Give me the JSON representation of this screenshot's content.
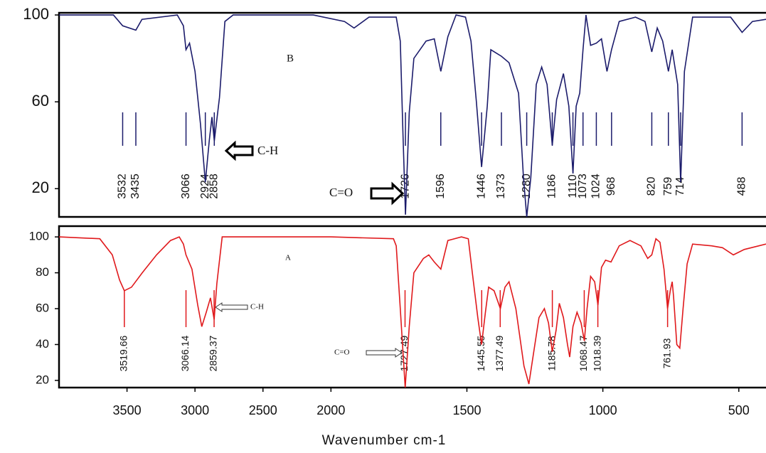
{
  "chart_data": [
    {
      "type": "line",
      "panel_label": "B",
      "xlim": [
        4000,
        400
      ],
      "xbreak": 2000,
      "ylim": [
        7,
        101
      ],
      "yticks": [
        100,
        60,
        20
      ],
      "annotations": [
        "C-H",
        "C=O"
      ],
      "peaks": [
        3532,
        3435,
        3066,
        2924,
        2858,
        1726,
        1596,
        1446,
        1373,
        1280,
        1186,
        1110,
        1073,
        1024,
        968,
        820,
        759,
        714,
        488
      ],
      "series": [
        {
          "color": "#1b1b6b",
          "x": [
            4000,
            3600,
            3532,
            3435,
            3390,
            3130,
            3085,
            3066,
            3040,
            3000,
            2960,
            2924,
            2895,
            2875,
            2858,
            2820,
            2780,
            2720,
            2130,
            1950,
            1915,
            1860,
            1760,
            1745,
            1735,
            1726,
            1712,
            1695,
            1650,
            1620,
            1596,
            1570,
            1540,
            1505,
            1485,
            1465,
            1446,
            1425,
            1412,
            1373,
            1345,
            1310,
            1292,
            1280,
            1265,
            1245,
            1225,
            1205,
            1186,
            1170,
            1145,
            1125,
            1110,
            1098,
            1085,
            1073,
            1062,
            1045,
            1024,
            1005,
            985,
            968,
            940,
            880,
            845,
            820,
            800,
            780,
            759,
            745,
            725,
            714,
            700,
            670,
            530,
            488,
            450,
            400
          ],
          "values": [
            100,
            100,
            95,
            93,
            98,
            100,
            95,
            84,
            87,
            74,
            50,
            23,
            42,
            53,
            42,
            62,
            97,
            100,
            100,
            97,
            94,
            99,
            99,
            88,
            45,
            8,
            55,
            80,
            88,
            89,
            74,
            90,
            100,
            99,
            88,
            60,
            30,
            58,
            84,
            81,
            78,
            64,
            25,
            7,
            25,
            68,
            76,
            68,
            40,
            61,
            73,
            58,
            27,
            58,
            64,
            84,
            100,
            86,
            87,
            89,
            74,
            84,
            97,
            99,
            97,
            83,
            94,
            88,
            74,
            84,
            68,
            23,
            74,
            99,
            99,
            92,
            97,
            98
          ]
        }
      ]
    },
    {
      "type": "line",
      "panel_label": "A",
      "xlim": [
        4000,
        400
      ],
      "xbreak": 2000,
      "ylim": [
        16,
        106
      ],
      "yticks": [
        100,
        80,
        60,
        40,
        20
      ],
      "xticks": [
        3500,
        3000,
        2500,
        2000,
        1500,
        1000,
        500
      ],
      "xlabel": "Wavenumber cm-1",
      "annotations": [
        "C-H",
        "C=O"
      ],
      "peaks": [
        3519.66,
        3066.14,
        2859.37,
        1727.49,
        1445.55,
        1377.49,
        1185.78,
        1068.47,
        1018.39,
        761.93
      ],
      "series": [
        {
          "color": "#e0191c",
          "x": [
            4000,
            3700,
            3608,
            3555,
            3520,
            3467,
            3388,
            3283,
            3180,
            3116,
            3085,
            3066,
            3022,
            2980,
            2950,
            2917,
            2886,
            2859,
            2839,
            2800,
            2000,
            1770,
            1760,
            1745,
            1727,
            1712,
            1695,
            1660,
            1640,
            1620,
            1596,
            1570,
            1520,
            1495,
            1480,
            1460,
            1446,
            1432,
            1420,
            1400,
            1377,
            1360,
            1345,
            1320,
            1290,
            1272,
            1255,
            1235,
            1215,
            1200,
            1186,
            1172,
            1160,
            1145,
            1130,
            1122,
            1110,
            1095,
            1080,
            1068,
            1058,
            1045,
            1030,
            1018,
            1005,
            990,
            970,
            940,
            900,
            860,
            835,
            820,
            805,
            790,
            775,
            762,
            752,
            745,
            740,
            728,
            717,
            705,
            690,
            670,
            600,
            560,
            520,
            480,
            400
          ],
          "values": [
            100,
            99,
            90,
            76,
            70,
            72,
            80,
            90,
            98,
            100,
            96,
            90,
            82,
            62,
            50,
            58,
            66,
            54,
            74,
            100,
            100,
            99,
            95,
            60,
            16,
            50,
            80,
            88,
            90,
            86,
            82,
            98,
            100,
            99,
            80,
            55,
            40,
            58,
            72,
            70,
            60,
            72,
            75,
            60,
            28,
            18,
            35,
            55,
            60,
            52,
            36,
            48,
            63,
            55,
            40,
            33,
            50,
            58,
            52,
            42,
            60,
            78,
            75,
            62,
            83,
            87,
            86,
            95,
            98,
            95,
            88,
            90,
            99,
            97,
            82,
            60,
            70,
            75,
            67,
            40,
            38,
            60,
            85,
            96,
            95,
            94,
            90,
            93,
            96
          ]
        }
      ]
    }
  ]
}
